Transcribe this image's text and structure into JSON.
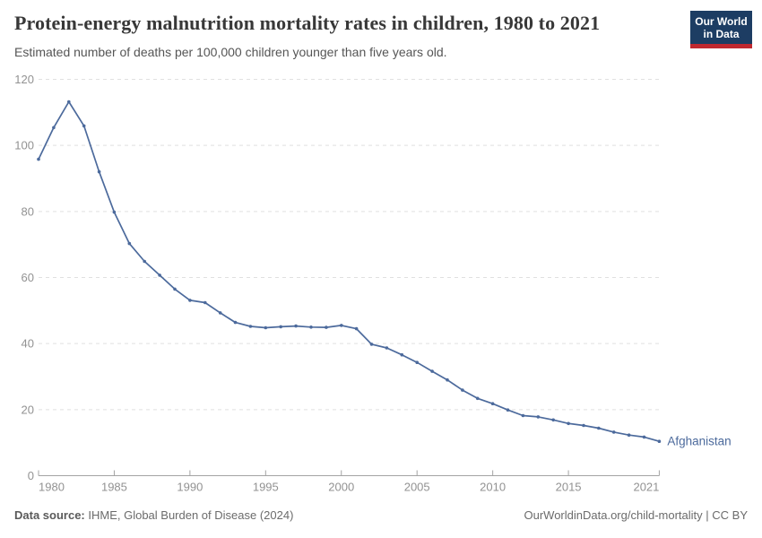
{
  "header": {
    "title": "Protein-energy malnutrition mortality rates in children, 1980 to 2021",
    "subtitle": "Estimated number of deaths per 100,000 children younger than five years old.",
    "logo": {
      "line1": "Our World",
      "line2": "in Data"
    }
  },
  "footer": {
    "source_label": "Data source:",
    "source_text": " IHME, Global Burden of Disease (2024)",
    "link_text": "OurWorldinData.org/child-mortality | CC BY"
  },
  "colors": {
    "line": "#4c6a9c",
    "series_label": "#4c6a9c",
    "grid": "#e0e0e0",
    "axis": "#a3a3a3",
    "tick_label": "#929292",
    "logo_bg": "#1d3d63",
    "logo_red": "#c0282f"
  },
  "chart_data": {
    "type": "line",
    "title": "Protein-energy malnutrition mortality rates in children, 1980 to 2021",
    "subtitle": "Estimated number of deaths per 100,000 children younger than five years old.",
    "xlabel": "",
    "ylabel": "",
    "xlim": [
      1980,
      2021
    ],
    "ylim": [
      0,
      120
    ],
    "x_ticks": [
      1980,
      1985,
      1990,
      1995,
      2000,
      2005,
      2010,
      2015,
      2021
    ],
    "y_ticks": [
      0,
      20,
      40,
      60,
      80,
      100,
      120
    ],
    "grid": "horizontal-dashed",
    "legend_position": "end-of-line-label",
    "series": [
      {
        "name": "Afghanistan",
        "years": [
          1980,
          1981,
          1982,
          1983,
          1984,
          1985,
          1986,
          1987,
          1988,
          1989,
          1990,
          1991,
          1992,
          1993,
          1994,
          1995,
          1996,
          1997,
          1998,
          1999,
          2000,
          2001,
          2002,
          2003,
          2004,
          2005,
          2006,
          2007,
          2008,
          2009,
          2010,
          2011,
          2012,
          2013,
          2014,
          2015,
          2016,
          2017,
          2018,
          2019,
          2020,
          2021
        ],
        "values": [
          95.8,
          105.4,
          113.2,
          105.9,
          92.0,
          79.8,
          70.3,
          64.9,
          60.7,
          56.5,
          53.1,
          52.4,
          49.3,
          46.4,
          45.2,
          44.8,
          45.1,
          45.3,
          45.0,
          44.9,
          45.5,
          44.5,
          39.8,
          38.7,
          36.6,
          34.3,
          31.6,
          29.0,
          25.9,
          23.4,
          21.8,
          19.9,
          18.2,
          17.8,
          16.9,
          15.8,
          15.2,
          14.4,
          13.2,
          12.3,
          11.7,
          10.4
        ]
      }
    ]
  }
}
